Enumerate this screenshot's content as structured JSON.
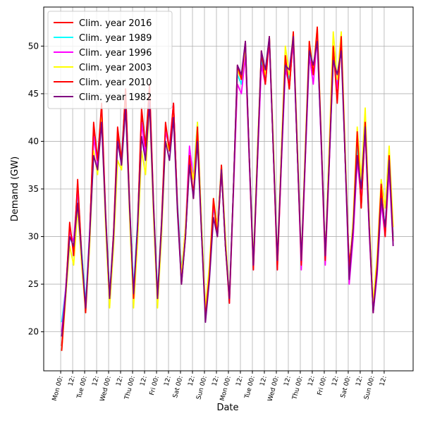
{
  "chart_data": {
    "type": "line",
    "xlabel": "Date",
    "ylabel": "Demand (GW)",
    "x": [
      1,
      5,
      9,
      13,
      17,
      21,
      25,
      29,
      33,
      37,
      41,
      45,
      49,
      53,
      57,
      61,
      65,
      69,
      73,
      77,
      81,
      85,
      89,
      93,
      97,
      101,
      105,
      109,
      113,
      117,
      121,
      125,
      129,
      133,
      137,
      141,
      145,
      149,
      153,
      157,
      161,
      165,
      169,
      173,
      177,
      181,
      185,
      189,
      193,
      197,
      201,
      205,
      209,
      213,
      217,
      221,
      225,
      229,
      233,
      237,
      241,
      245,
      249,
      253,
      257,
      261,
      265,
      269,
      273,
      277,
      281,
      285,
      289,
      293,
      297,
      301,
      305,
      309,
      313,
      317,
      321,
      325,
      329,
      333
    ],
    "series": [
      {
        "name": "Clim. year 2016",
        "color": "#ff0000",
        "values": [
          18.5,
          24,
          31,
          28.5,
          35.5,
          28,
          22.5,
          30,
          41.5,
          38,
          43.5,
          32,
          23.5,
          30,
          41,
          37.5,
          45.5,
          33,
          24,
          31,
          43,
          39,
          45.5,
          33,
          23.5,
          31,
          41.5,
          39,
          44,
          33,
          25.5,
          30,
          38,
          34.5,
          41,
          31,
          22,
          26,
          33.5,
          30,
          37,
          29,
          23.5,
          35,
          47.5,
          46.5,
          50,
          38,
          27,
          38,
          49,
          46,
          51,
          39,
          27,
          38,
          48.5,
          45.5,
          51,
          39,
          27.5,
          38.5,
          50,
          47,
          51.5,
          40,
          28,
          38,
          50,
          44.5,
          51,
          38,
          27,
          31,
          40.5,
          33,
          41.5,
          31,
          23,
          27,
          35,
          30.5,
          38,
          30
        ]
      },
      {
        "name": "Clim. year 1989",
        "color": "#00ffff",
        "values": [
          21,
          24.5,
          30,
          29,
          34.5,
          28.5,
          23,
          30.5,
          40.5,
          38.5,
          43,
          32.5,
          24,
          30.5,
          40,
          38.5,
          45,
          33.5,
          24.5,
          31.5,
          42,
          40,
          45,
          33.5,
          24,
          31.5,
          41,
          39.5,
          43.5,
          33.5,
          26.5,
          30.5,
          38,
          36.5,
          42,
          31.5,
          22.5,
          26.5,
          33,
          31,
          37.5,
          29.5,
          23.5,
          35,
          47,
          46,
          49.5,
          38,
          27.5,
          38,
          48.5,
          46.5,
          50.5,
          39.5,
          27.5,
          38,
          48,
          46.5,
          50.5,
          39.5,
          27.5,
          38.5,
          49.5,
          47.5,
          51,
          40,
          28,
          38,
          49.5,
          46,
          50.5,
          38.5,
          26.5,
          31,
          39.5,
          35,
          41.5,
          31,
          23,
          27,
          34,
          31,
          37.5,
          30
        ]
      },
      {
        "name": "Clim. year 1996",
        "color": "#ff00ff",
        "values": [
          20,
          24.5,
          30.5,
          29.5,
          35,
          28,
          22.5,
          30.5,
          40.5,
          37.5,
          43,
          32,
          23.5,
          30.5,
          40,
          38,
          45,
          33,
          24,
          31,
          42,
          38.5,
          45,
          33,
          23.5,
          31,
          41,
          39.5,
          44,
          33,
          26,
          31,
          39.5,
          36,
          41.5,
          31,
          22,
          26,
          33,
          31.5,
          37,
          29.5,
          23,
          34.5,
          46,
          45,
          49,
          37.5,
          26.5,
          37.5,
          48,
          46,
          50.5,
          39,
          26.5,
          37.5,
          47.5,
          46,
          50.5,
          39,
          26.5,
          38,
          49,
          46,
          51,
          39.5,
          27,
          37.5,
          49,
          45.5,
          50.5,
          38,
          25,
          30,
          38,
          34,
          41,
          30.5,
          22,
          26,
          33.5,
          30,
          37,
          29
        ]
      },
      {
        "name": "Clim. year 2003",
        "color": "#ffff00",
        "values": [
          18,
          23.5,
          29,
          27,
          33,
          27,
          22,
          29,
          39,
          36.5,
          43,
          31,
          22.5,
          29,
          38,
          37,
          45,
          32,
          22.5,
          29.5,
          39,
          36.5,
          44,
          32,
          22.5,
          30,
          40,
          39,
          43.5,
          32.5,
          26,
          31,
          38,
          36,
          42,
          31.5,
          22.5,
          27,
          34,
          31,
          37.5,
          30,
          23.5,
          35,
          47.5,
          46.5,
          50,
          38,
          27.5,
          39,
          49.5,
          47,
          51,
          40,
          27.5,
          39,
          50,
          47,
          51.5,
          40,
          27.5,
          39.5,
          50.5,
          47.5,
          52,
          40.5,
          28,
          39.5,
          51.5,
          46.5,
          51.5,
          39,
          26,
          32,
          41.5,
          36,
          43.5,
          32,
          23,
          28,
          36,
          33,
          39.5,
          31
        ]
      },
      {
        "name": "Clim. year 2010",
        "color": "#ff0000",
        "values": [
          18,
          24,
          31.5,
          28,
          36,
          28,
          22,
          30,
          42,
          38,
          44,
          32.5,
          23.5,
          30.5,
          41.5,
          38,
          45.5,
          33.5,
          23.5,
          31,
          43.5,
          39.5,
          46,
          33.5,
          23.5,
          31.5,
          42,
          39,
          44,
          33,
          25,
          30,
          38.5,
          34,
          41.5,
          30.5,
          21.5,
          26,
          34,
          30,
          37.5,
          29,
          23,
          35,
          48,
          46.5,
          50.5,
          38,
          26.5,
          38,
          49.5,
          46,
          51,
          39,
          26.5,
          38,
          49,
          45.5,
          51.5,
          39,
          27,
          38.5,
          50.5,
          47,
          52,
          40,
          27.5,
          38,
          50,
          44,
          51,
          38,
          26.5,
          31,
          41,
          33,
          42,
          31,
          22,
          27,
          35.5,
          30,
          38.5,
          29.5
        ]
      },
      {
        "name": "Clim. year 1982",
        "color": "#800080",
        "values": [
          19.5,
          24,
          30,
          29,
          33.5,
          28,
          22.5,
          30,
          38.5,
          37,
          42,
          32,
          23.5,
          30,
          40,
          37.5,
          43.5,
          33,
          24,
          31,
          40.5,
          38,
          44,
          33,
          23.5,
          31,
          40,
          38,
          42.5,
          32.5,
          25,
          30,
          37.5,
          34,
          40,
          30.5,
          21,
          25.5,
          32,
          30,
          37,
          29,
          23.5,
          35,
          48,
          47,
          50.5,
          38,
          27,
          38,
          49.5,
          47.5,
          51,
          39,
          27.5,
          38,
          48,
          47.5,
          51,
          39,
          27.5,
          38.5,
          49.5,
          48,
          50.5,
          40,
          28,
          38,
          48.5,
          47,
          49.5,
          38,
          25.5,
          31,
          38.5,
          35,
          41.5,
          31,
          22,
          26.5,
          34,
          31,
          38,
          29
        ]
      }
    ],
    "xlim": [
      -17,
      353
    ],
    "ylim": [
      15.9,
      54.1
    ],
    "xticks": [
      {
        "value": 0,
        "label": "Mon 00:"
      },
      {
        "value": 12,
        "label": "12:"
      },
      {
        "value": 24,
        "label": "Tue 00:"
      },
      {
        "value": 36,
        "label": "12:"
      },
      {
        "value": 48,
        "label": "Wed 00:"
      },
      {
        "value": 60,
        "label": "12:"
      },
      {
        "value": 72,
        "label": "Thu 00:"
      },
      {
        "value": 84,
        "label": "12:"
      },
      {
        "value": 96,
        "label": "Fri 00:"
      },
      {
        "value": 108,
        "label": "12:"
      },
      {
        "value": 120,
        "label": "Sat 00:"
      },
      {
        "value": 132,
        "label": "12:"
      },
      {
        "value": 144,
        "label": "Sun 00:"
      },
      {
        "value": 156,
        "label": "12:"
      },
      {
        "value": 168,
        "label": "Mon 00:"
      },
      {
        "value": 180,
        "label": "12:"
      },
      {
        "value": 192,
        "label": "Tue 00:"
      },
      {
        "value": 204,
        "label": "12:"
      },
      {
        "value": 216,
        "label": "Wed 00:"
      },
      {
        "value": 228,
        "label": "12:"
      },
      {
        "value": 240,
        "label": "Thu 00:"
      },
      {
        "value": 252,
        "label": "12:"
      },
      {
        "value": 264,
        "label": "Fri 00:"
      },
      {
        "value": 276,
        "label": "12:"
      },
      {
        "value": 288,
        "label": "Sat 00:"
      },
      {
        "value": 300,
        "label": "12:"
      },
      {
        "value": 312,
        "label": "Sun 00:"
      },
      {
        "value": 324,
        "label": "12:"
      }
    ],
    "yticks": [
      20,
      25,
      30,
      35,
      40,
      45,
      50
    ],
    "grid": true,
    "legend": "upper left"
  }
}
